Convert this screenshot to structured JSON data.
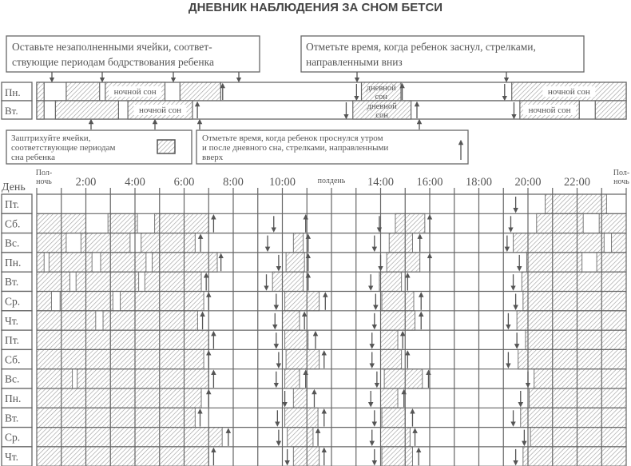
{
  "title": "ДНЕВНИК НАБЛЮДЕНИЯ ЗА СНОМ БЕТСИ",
  "colors": {
    "line": "#666666",
    "hatch": "#9a9a9a",
    "text": "#555555"
  },
  "callouts": {
    "blank_cells": [
      "Оставьте незаполненными ячейки, соответ-",
      "ствующие периодам бодрствования ребенка"
    ],
    "fell_asleep": [
      "Отметьте время, когда ребенок заснул, стрелками,",
      "направленными вниз"
    ],
    "shade_cells": [
      "Заштрихуйте ячейки,",
      "соответствующие периодам",
      "сна ребенка"
    ],
    "woke_up": [
      "Отметьте время, когда ребенок проснулся утром",
      "и после дневного сна, стрелками, направленными",
      "вверх"
    ]
  },
  "example": {
    "labels": {
      "night": "ночной сон",
      "nap": [
        "дневной",
        "сон"
      ]
    },
    "rows": [
      {
        "day": "Пн.",
        "sleep": [
          [
            0,
            0.3,
            ""
          ],
          [
            1.2,
            2.56,
            ""
          ],
          [
            2.79,
            5.22,
            "night"
          ],
          [
            5.83,
            7.49,
            ""
          ],
          [
            13.22,
            14.83,
            "nap"
          ],
          [
            19.34,
            24,
            "night"
          ]
        ],
        "down": [
          13.02,
          19.05
        ],
        "up": [
          7.57,
          14.88
        ]
      },
      {
        "day": "Вт.",
        "sleep": [
          [
            0,
            0.3,
            ""
          ],
          [
            0.76,
            3.33,
            ""
          ],
          [
            3.71,
            6.34,
            "night"
          ],
          [
            12.87,
            15.24,
            "nap"
          ],
          [
            19.67,
            22.09,
            "night"
          ],
          [
            22.74,
            24,
            ""
          ]
        ],
        "down": [
          12.6,
          19.43
        ],
        "up": [
          6.54,
          15.48
        ]
      }
    ]
  },
  "header": {
    "day_label": "День",
    "time_labels": [
      {
        "hour": 0,
        "text": [
          "Пол-",
          "ночь"
        ]
      },
      {
        "hour": 2,
        "text": [
          "2:00"
        ]
      },
      {
        "hour": 4,
        "text": [
          "4:00"
        ]
      },
      {
        "hour": 6,
        "text": [
          "6:00"
        ]
      },
      {
        "hour": 8,
        "text": [
          "8:00"
        ]
      },
      {
        "hour": 10,
        "text": [
          "10:00"
        ]
      },
      {
        "hour": 12,
        "text": [
          "полдень"
        ]
      },
      {
        "hour": 14,
        "text": [
          "14:00"
        ]
      },
      {
        "hour": 16,
        "text": [
          "16:00"
        ]
      },
      {
        "hour": 18,
        "text": [
          "18:00"
        ]
      },
      {
        "hour": 20,
        "text": [
          "20:00"
        ]
      },
      {
        "hour": 22,
        "text": [
          "22:00"
        ]
      },
      {
        "hour": 24,
        "text": [
          "Пол-",
          "ночь"
        ]
      }
    ]
  },
  "diary": [
    {
      "day": "Пт.",
      "sleep": [
        [
          20.7,
          23.2
        ]
      ],
      "down": [
        19.5
      ],
      "up": []
    },
    {
      "day": "Сб.",
      "sleep": [
        [
          0,
          2.0
        ],
        [
          2.9,
          4.1
        ],
        [
          4.8,
          7.0
        ],
        [
          14.6,
          15.8
        ],
        [
          20.35,
          22.25
        ],
        [
          22.9,
          24
        ]
      ],
      "down": [
        9.65,
        13.95,
        19.3
      ],
      "up": [
        7.2,
        10.95,
        16.0
      ]
    },
    {
      "day": "Вс.",
      "sleep": [
        [
          0,
          1.2
        ],
        [
          1.8,
          3.8
        ],
        [
          4.25,
          6.45
        ],
        [
          10.45,
          10.85
        ],
        [
          14.35,
          15.3
        ],
        [
          19.4,
          23.1
        ],
        [
          23.4,
          24
        ]
      ],
      "down": [
        9.4,
        13.75,
        19.15
      ],
      "up": [
        6.67,
        11.05,
        15.6
      ]
    },
    {
      "day": "Пн.",
      "sleep": [
        [
          0,
          0.3
        ],
        [
          0.5,
          2.25
        ],
        [
          2.6,
          4.45
        ],
        [
          4.7,
          7.35
        ],
        [
          10.15,
          10.9
        ],
        [
          14.25,
          15.6
        ],
        [
          19.95,
          22.2
        ],
        [
          22.8,
          24
        ]
      ],
      "down": [
        9.85,
        14.0,
        19.65
      ],
      "up": [
        7.5,
        11.05,
        16.0
      ]
    },
    {
      "day": "Вт.",
      "sleep": [
        [
          0,
          1.35
        ],
        [
          1.6,
          4.15
        ],
        [
          4.4,
          6.7
        ],
        [
          9.6,
          10.85
        ],
        [
          13.95,
          14.85
        ],
        [
          19.75,
          24
        ]
      ],
      "down": [
        9.35,
        13.6,
        19.4
      ],
      "up": [
        6.9,
        11.05,
        15.1
      ]
    },
    {
      "day": "Ср.",
      "sleep": [
        [
          0,
          0.6
        ],
        [
          0.95,
          3.1
        ],
        [
          3.4,
          6.8
        ],
        [
          10.1,
          11.5
        ],
        [
          14.05,
          15.35
        ],
        [
          19.8,
          24
        ]
      ],
      "down": [
        9.75,
        13.8,
        19.5
      ],
      "up": [
        7.0,
        11.75,
        15.65
      ]
    },
    {
      "day": "Чт.",
      "sleep": [
        [
          0,
          2.4
        ],
        [
          2.7,
          6.55
        ],
        [
          10.0,
          10.7
        ],
        [
          14.0,
          15.4
        ],
        [
          19.55,
          24
        ]
      ],
      "down": [
        9.7,
        13.75,
        19.2
      ],
      "up": [
        6.75,
        10.9,
        15.65
      ]
    },
    {
      "day": "Пт.",
      "sleep": [
        [
          0,
          7.0
        ],
        [
          10.1,
          11.05
        ],
        [
          14.0,
          14.7
        ],
        [
          19.9,
          24
        ]
      ],
      "down": [
        9.75,
        13.65,
        19.55
      ],
      "up": [
        7.2,
        11.35,
        14.9
      ]
    },
    {
      "day": "Сб.",
      "sleep": [
        [
          0,
          6.8
        ],
        [
          10.15,
          11.5
        ],
        [
          14.0,
          14.85
        ],
        [
          19.6,
          24
        ]
      ],
      "down": [
        9.85,
        13.65,
        19.2
      ],
      "up": [
        7.0,
        11.7,
        15.1
      ]
    },
    {
      "day": "Вс.",
      "sleep": [
        [
          0,
          1.45
        ],
        [
          1.65,
          7.0
        ],
        [
          10.1,
          10.7
        ],
        [
          14.15,
          15.7
        ],
        [
          20.25,
          24
        ]
      ],
      "down": [
        9.75,
        13.85,
        20.0
      ],
      "up": [
        7.2,
        10.95,
        15.95
      ]
    },
    {
      "day": "Пн.",
      "sleep": [
        [
          0,
          6.7
        ],
        [
          10.45,
          11.0
        ],
        [
          14.0,
          14.7
        ],
        [
          20.05,
          24
        ]
      ],
      "down": [
        10.1,
        13.6,
        19.7
      ],
      "up": [
        7.0,
        11.3,
        14.95
      ]
    },
    {
      "day": "Вт.",
      "sleep": [
        [
          0,
          6.45
        ],
        [
          10.1,
          11.45
        ],
        [
          14.05,
          15.0
        ],
        [
          19.7,
          24
        ]
      ],
      "down": [
        9.8,
        13.75,
        19.4
      ],
      "up": [
        6.65,
        11.7,
        15.3
      ]
    },
    {
      "day": "Ср.",
      "sleep": [
        [
          0,
          7.55
        ],
        [
          10.2,
          11.25
        ],
        [
          14.0,
          15.2
        ],
        [
          20.1,
          24
        ]
      ],
      "down": [
        9.85,
        13.65,
        19.85
      ],
      "up": [
        7.8,
        11.45,
        15.4
      ]
    },
    {
      "day": "Чт.",
      "sleep": [
        [
          0,
          7.0
        ],
        [
          10.45,
          11.5
        ],
        [
          14.05,
          15.3
        ],
        [
          19.8,
          24
        ]
      ],
      "down": [
        10.2,
        13.75,
        19.5
      ],
      "up": [
        7.2,
        11.7,
        15.55
      ]
    }
  ]
}
